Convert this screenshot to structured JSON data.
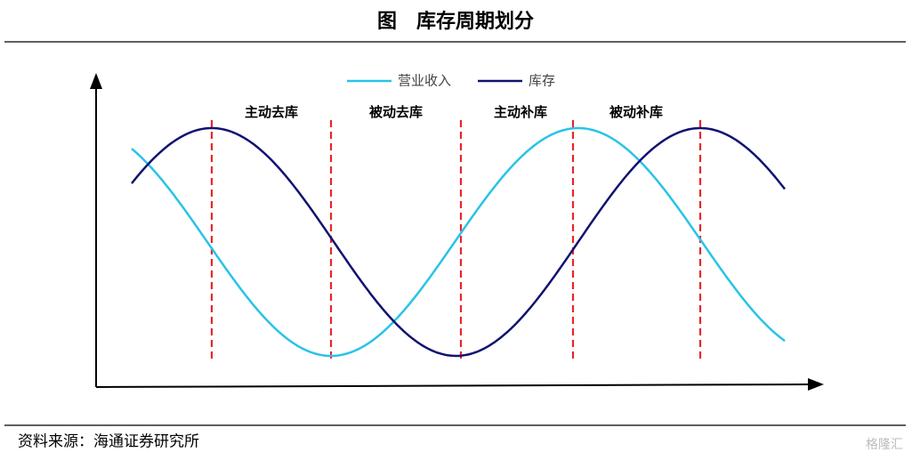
{
  "header": {
    "title": "图　库存周期划分"
  },
  "legend": [
    {
      "name": "营业收入",
      "color": "#29c3e8"
    },
    {
      "name": "库存",
      "color": "#121270"
    }
  ],
  "phases": [
    "主动去库",
    "被动去库",
    "主动补库",
    "被动补库"
  ],
  "footer": {
    "source": "资料来源：海通证券研究所"
  },
  "watermark": "格隆汇"
}
